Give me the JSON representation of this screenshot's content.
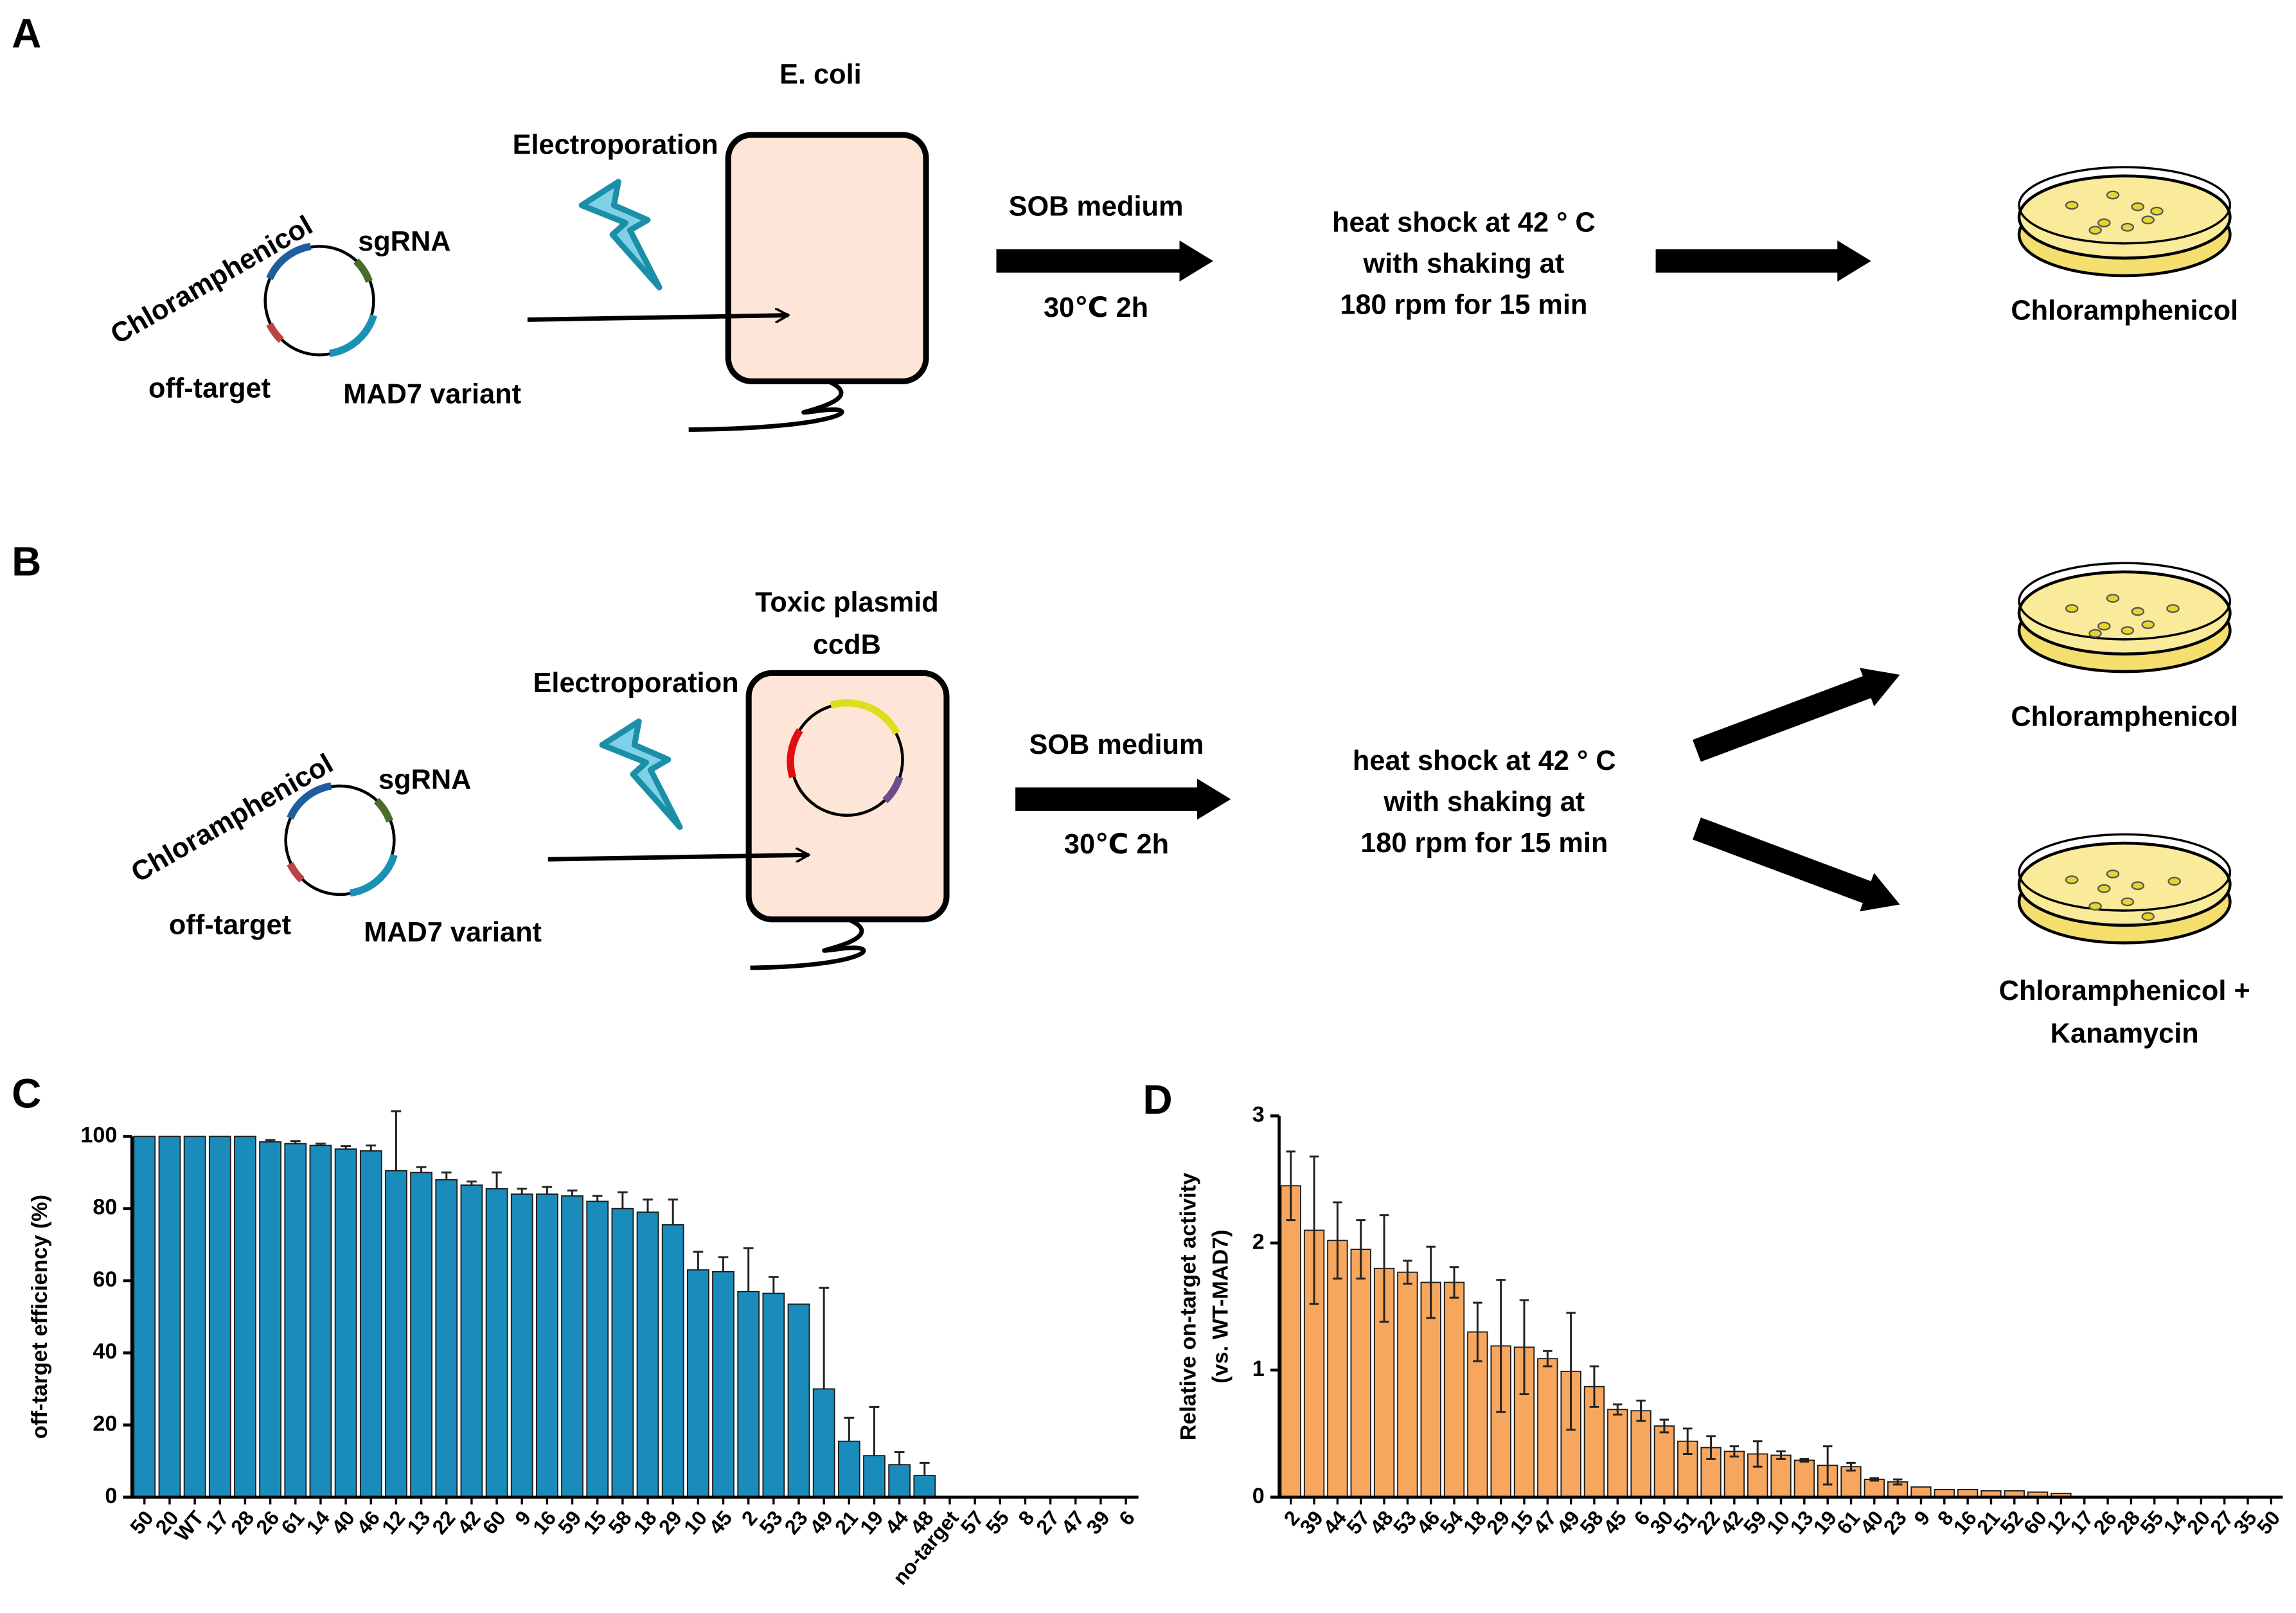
{
  "panels": {
    "A": {
      "label": "A",
      "host": "E. coli",
      "electroporation": "Electroporation",
      "plasmid_labels": [
        "Chloramphenicol",
        "sgRNA",
        "off-target",
        "MAD7 variant"
      ],
      "medium": "SOB medium",
      "incubation": "30℃ 2h",
      "heat_shock": [
        "heat shock at 42 ° C",
        "with shaking at",
        "180 rpm for 15 min"
      ],
      "plate": "Chloramphenicol"
    },
    "B": {
      "label": "B",
      "host": [
        "Toxic plasmid",
        "ccdB"
      ],
      "electroporation": "Electroporation",
      "plasmid_labels": [
        "Chloramphenicol",
        "sgRNA",
        "off-target",
        "MAD7 variant"
      ],
      "medium": "SOB medium",
      "incubation": "30℃ 2h",
      "heat_shock": [
        "heat shock at 42 ° C",
        "with shaking at",
        "180 rpm for 15 min"
      ],
      "plates": [
        "Chloramphenicol",
        "Chloramphenicol +",
        "Kanamycin"
      ]
    }
  },
  "chart_data": [
    {
      "type": "bar",
      "panel_label": "C",
      "ylabel": [
        "off-target efficiency (%)"
      ],
      "color": "#1a8cbb",
      "error_bars": "upper",
      "categories": [
        "50",
        "20",
        "WT",
        "17",
        "28",
        "26",
        "61",
        "14",
        "40",
        "46",
        "12",
        "13",
        "22",
        "42",
        "60",
        "9",
        "16",
        "59",
        "15",
        "58",
        "18",
        "29",
        "10",
        "45",
        "2",
        "53",
        "23",
        "49",
        "21",
        "19",
        "44",
        "48",
        "no-target",
        "57",
        "55",
        "8",
        "27",
        "47",
        "39",
        "6"
      ],
      "values": [
        100,
        100,
        100,
        100,
        100,
        98.5,
        98,
        97.5,
        96.5,
        96,
        90.5,
        90,
        88,
        86.5,
        85.5,
        84,
        84,
        83.5,
        82,
        80,
        79,
        75.5,
        63,
        62.5,
        57,
        56.5,
        53.5,
        30,
        15.5,
        11.5,
        9,
        6,
        0,
        0,
        0,
        0,
        0,
        0,
        0,
        0
      ],
      "errors": [
        0,
        0,
        0,
        0,
        0,
        0.5,
        0.7,
        0.5,
        0.8,
        1.5,
        16.5,
        1.5,
        2,
        1,
        4.5,
        1.5,
        2,
        1.5,
        1.5,
        4.5,
        3.5,
        7,
        5,
        4,
        12,
        4.5,
        0,
        28,
        6.5,
        13.5,
        3.5,
        3.5,
        0,
        0,
        0,
        0,
        0,
        0,
        0,
        0
      ],
      "ylim": [
        0,
        100
      ],
      "yticks": [
        0,
        20,
        40,
        60,
        80,
        100
      ]
    },
    {
      "type": "bar",
      "panel_label": "D",
      "ylabel": [
        "Relative on-target activity",
        "(vs. WT-MAD7)"
      ],
      "color": "#f7a65e",
      "error_bars": "both",
      "categories": [
        "2",
        "39",
        "44",
        "57",
        "48",
        "53",
        "46",
        "54",
        "18",
        "29",
        "15",
        "47",
        "49",
        "58",
        "45",
        "6",
        "30",
        "51",
        "22",
        "42",
        "59",
        "10",
        "13",
        "19",
        "61",
        "40",
        "23",
        "9",
        "8",
        "16",
        "21",
        "52",
        "60",
        "12",
        "17",
        "26",
        "28",
        "55",
        "14",
        "20",
        "27",
        "35",
        "50"
      ],
      "values": [
        2.45,
        2.1,
        2.02,
        1.95,
        1.8,
        1.77,
        1.69,
        1.69,
        1.3,
        1.19,
        1.18,
        1.09,
        0.99,
        0.87,
        0.69,
        0.68,
        0.56,
        0.44,
        0.39,
        0.36,
        0.34,
        0.33,
        0.29,
        0.25,
        0.24,
        0.14,
        0.12,
        0.08,
        0.06,
        0.06,
        0.05,
        0.05,
        0.04,
        0.03,
        0,
        0,
        0,
        0,
        0,
        0,
        0,
        0,
        0
      ],
      "errors": [
        0.27,
        0.58,
        0.3,
        0.23,
        0.42,
        0.09,
        0.28,
        0.12,
        0.23,
        0.52,
        0.37,
        0.06,
        0.46,
        0.16,
        0.04,
        0.08,
        0.05,
        0.1,
        0.09,
        0.04,
        0.1,
        0.03,
        0.01,
        0.15,
        0.03,
        0.01,
        0.02,
        0,
        0,
        0,
        0,
        0,
        0,
        0,
        0,
        0,
        0,
        0,
        0,
        0,
        0,
        0,
        0
      ],
      "ylim": [
        0,
        3
      ],
      "yticks": [
        0,
        1,
        2,
        3
      ]
    }
  ]
}
